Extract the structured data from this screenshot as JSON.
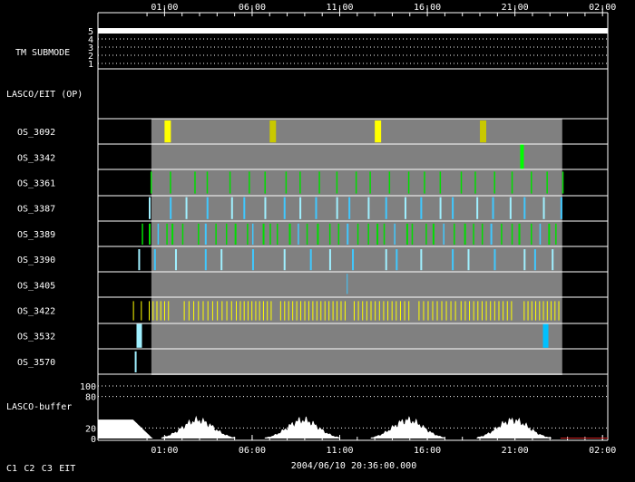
{
  "time_axis": {
    "ticks": [
      "01:00",
      "06:00",
      "11:00",
      "16:00",
      "21:00",
      "02:00"
    ],
    "tick_hours": [
      1,
      6,
      11,
      16,
      21,
      26
    ],
    "range_hours": [
      -2.8,
      26.3
    ]
  },
  "timestamp": "2004/06/10 20:36:00.000",
  "rows": {
    "tm_submode": {
      "label": "TM SUBMODE",
      "levels": [
        "5",
        "4",
        "3",
        "2",
        "1"
      ],
      "value": 5
    },
    "lasco_eit": {
      "label": "LASCO/EIT (OP)"
    },
    "os": [
      "OS_3092",
      "OS_3342",
      "OS_3361",
      "OS_3387",
      "OS_3389",
      "OS_3390",
      "OS_3405",
      "OS_3422",
      "OS_3532",
      "OS_3570"
    ],
    "buffer": {
      "label": "LASCO-buffer",
      "ticks": [
        "100",
        "80",
        "20",
        "0"
      ],
      "tick_values": [
        100,
        80,
        20,
        0
      ]
    }
  },
  "activity_window_hours": [
    0.25,
    23.7
  ],
  "legend": [
    {
      "label": "C1",
      "color": "#ff3030"
    },
    {
      "label": "C2",
      "color": "#30ff30"
    },
    {
      "label": "C3",
      "color": "#ffff40"
    },
    {
      "label": "EIT",
      "color": "#ffffff"
    }
  ],
  "colors": {
    "background": "#000000",
    "activity_band": "#808080",
    "c2_green": "#00dd00",
    "c3_yellow": "#ffff00",
    "c3_dim_yellow": "#c8c800",
    "eit_cyan": "#40c8ff",
    "light_cyan": "#a0f0ff",
    "buffer_fill": "#ffffff"
  }
}
